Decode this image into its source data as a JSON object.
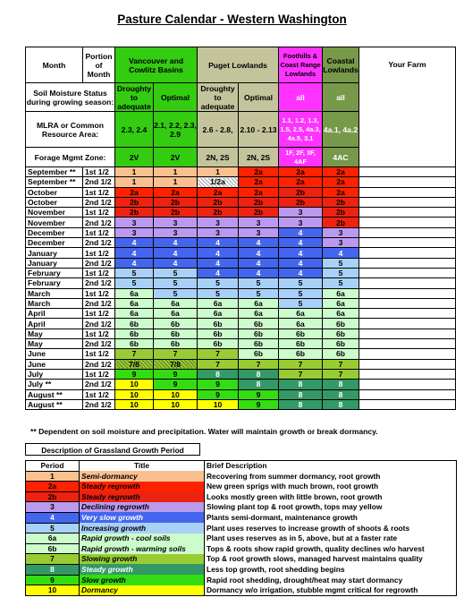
{
  "title": "Pasture Calendar - Western Washington",
  "header": {
    "month": "Month",
    "portion": "Portion of Month",
    "regions": [
      "Vancouver and Cowlitz Basins",
      "Puget Lowlands",
      "Foothills & Coast Range Lowlands",
      "Coastal Lowlands"
    ],
    "your_farm": "Your Farm",
    "soil_label": "Soil Moisture Status during growing season:",
    "soil": [
      "Droughty to adequate",
      "Optimal",
      "Droughty to adequate",
      "Optimal",
      "all",
      "all"
    ],
    "mlra_label": "MLRA or Common Resource Area:",
    "mlra": [
      "2.3, 2.4",
      "2.1, 2.2, 2.3, 2.9",
      "2.6 - 2.8,",
      "2.10 - 2.13",
      "1.1, 1.2, 1.3, 1.5, 2.5, 4a.3, 4a.5, 3.1",
      "4a.1, 4a.2"
    ],
    "forage_label": "Forage Mgmt Zone:",
    "forage": [
      "2V",
      "2V",
      "2N, 2S",
      "2N, 2S",
      "1F, 2F, 3F, 4AF",
      "4AC"
    ]
  },
  "colors": {
    "1": "#fac090",
    "2a": "#ff2200",
    "2b": "#ee2211",
    "3": "#bb99ee",
    "4": "#4466ee",
    "5": "#a8d0f8",
    "6a": "#ccfccc",
    "6b": "#ccfccc",
    "7": "#99cc33",
    "7/8": "#99cc33",
    "8": "#339966",
    "9": "#33dd11",
    "10": "#ffff00",
    "1/2a": "#fac090"
  },
  "rows": [
    {
      "month": "September **",
      "half": "1st 1/2",
      "v": [
        "1",
        "1",
        "1",
        "2a",
        "2a",
        "2a"
      ]
    },
    {
      "month": "September **",
      "half": "2nd 1/2",
      "v": [
        "1",
        "1",
        "1/2a",
        "2a",
        "2a",
        "2a"
      ]
    },
    {
      "month": "October",
      "half": "1st 1/2",
      "v": [
        "2a",
        "2a",
        "2a",
        "2a",
        "2b",
        "2a"
      ]
    },
    {
      "month": "October",
      "half": "2nd 1/2",
      "v": [
        "2b",
        "2b",
        "2b",
        "2b",
        "2b",
        "2b"
      ]
    },
    {
      "month": "November",
      "half": "1st 1/2",
      "v": [
        "2b",
        "2b",
        "2b",
        "2b",
        "3",
        "2b"
      ]
    },
    {
      "month": "November",
      "half": "2nd 1/2",
      "v": [
        "3",
        "3",
        "3",
        "3",
        "3",
        "2b"
      ]
    },
    {
      "month": "December",
      "half": "1st 1/2",
      "v": [
        "3",
        "3",
        "3",
        "3",
        "4",
        "3"
      ]
    },
    {
      "month": "December",
      "half": "2nd 1/2",
      "v": [
        "4",
        "4",
        "4",
        "4",
        "4",
        "3"
      ]
    },
    {
      "month": "January",
      "half": "1st 1/2",
      "v": [
        "4",
        "4",
        "4",
        "4",
        "4",
        "4"
      ]
    },
    {
      "month": "January",
      "half": "2nd 1/2",
      "v": [
        "4",
        "4",
        "4",
        "4",
        "4",
        "5"
      ]
    },
    {
      "month": "February",
      "half": "1st 1/2",
      "v": [
        "5",
        "5",
        "4",
        "4",
        "4",
        "5"
      ]
    },
    {
      "month": "February",
      "half": "2nd 1/2",
      "v": [
        "5",
        "5",
        "5",
        "5",
        "5",
        "5"
      ]
    },
    {
      "month": "March",
      "half": "1st 1/2",
      "v": [
        "6a",
        "5",
        "5",
        "5",
        "5",
        "6a"
      ]
    },
    {
      "month": "March",
      "half": "2nd 1/2",
      "v": [
        "6a",
        "6a",
        "6a",
        "6a",
        "5",
        "6a"
      ]
    },
    {
      "month": "April",
      "half": "1st 1/2",
      "v": [
        "6a",
        "6a",
        "6a",
        "6a",
        "6a",
        "6a"
      ]
    },
    {
      "month": "April",
      "half": "2nd 1/2",
      "v": [
        "6b",
        "6b",
        "6b",
        "6b",
        "6a",
        "6b"
      ]
    },
    {
      "month": "May",
      "half": "1st 1/2",
      "v": [
        "6b",
        "6b",
        "6b",
        "6b",
        "6b",
        "6b"
      ]
    },
    {
      "month": "May",
      "half": "2nd 1/2",
      "v": [
        "6b",
        "6b",
        "6b",
        "6b",
        "6b",
        "6b"
      ]
    },
    {
      "month": "June",
      "half": "1st 1/2",
      "v": [
        "7",
        "7",
        "7",
        "6b",
        "6b",
        "6b"
      ]
    },
    {
      "month": "June",
      "half": "2nd 1/2",
      "v": [
        "7/8",
        "7/8",
        "7",
        "7",
        "7",
        "7"
      ]
    },
    {
      "month": "July",
      "half": "1st 1/2",
      "v": [
        "9",
        "9",
        "8",
        "8",
        "7",
        "7"
      ]
    },
    {
      "month": "July **",
      "half": "2nd 1/2",
      "v": [
        "10",
        "9",
        "9",
        "8",
        "8",
        "8"
      ]
    },
    {
      "month": "August **",
      "half": "1st 1/2",
      "v": [
        "10",
        "10",
        "9",
        "9",
        "8",
        "8"
      ]
    },
    {
      "month": "August **",
      "half": "2nd 1/2",
      "v": [
        "10",
        "10",
        "10",
        "9",
        "8",
        "8"
      ]
    }
  ],
  "note": "**  Dependent on soil moisture and precipitation. Water will maintain growth or break dormancy.",
  "legend": {
    "title": "Description of Grassland Growth Period",
    "col_period": "Period",
    "col_title": "Title",
    "col_desc": "Brief Description",
    "items": [
      {
        "p": "1",
        "t": "Semi-dormancy",
        "d": "Recovering from summer dormancy, root growth"
      },
      {
        "p": "2a",
        "t": "Steady regrowth",
        "d": "New green sprigs with much brown, root growth"
      },
      {
        "p": "2b",
        "t": "Steady regrowth",
        "d": "Looks mostly green with little brown, root growth"
      },
      {
        "p": "3",
        "t": "Declining regrowth",
        "d": "Slowing plant top & root growth, tops may yellow"
      },
      {
        "p": "4",
        "t": "Very slow growth",
        "d": "Plants semi-dormant, maintenance growth"
      },
      {
        "p": "5",
        "t": "Increasing growth",
        "d": "Plant uses reserves to increase growth of shoots & roots"
      },
      {
        "p": "6a",
        "t": "Rapid growth - cool soils",
        "d": "Plant uses reserves as in 5, above, but at a faster rate"
      },
      {
        "p": "6b",
        "t": "Rapid growth - warming soils",
        "d": "Tops & roots show rapid growth, quality declines w/o harvest"
      },
      {
        "p": "7",
        "t": "Slowing growth",
        "d": "Top & root growth slows, managed harvest maintains quality"
      },
      {
        "p": "8",
        "t": "Steady growth",
        "d": "Less top growth, root shedding begins"
      },
      {
        "p": "9",
        "t": "Slow growth",
        "d": "Rapid root shedding, drought/heat may start dormancy"
      },
      {
        "p": "10",
        "t": "Dormancy",
        "d": "Dormancy w/o irrigation, stubble mgmt critical for regrowth"
      }
    ]
  }
}
